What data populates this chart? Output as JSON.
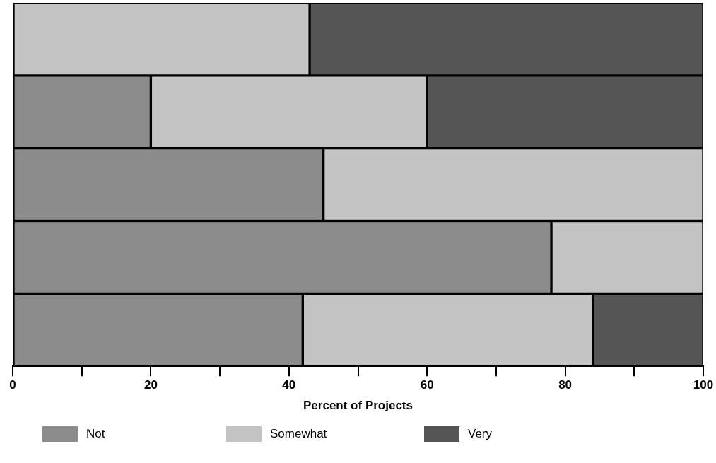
{
  "chart_data": {
    "type": "bar",
    "orientation": "horizontal",
    "stacked": true,
    "xlabel": "Percent of Projects",
    "categories": [
      null,
      null,
      null,
      null,
      null
    ],
    "series": [
      {
        "name": "Not",
        "color": "#8c8c8c",
        "values": [
          0,
          20,
          45,
          78,
          42
        ]
      },
      {
        "name": "Somewhat",
        "color": "#c4c4c4",
        "values": [
          43,
          40,
          55,
          22,
          42
        ]
      },
      {
        "name": "Very",
        "color": "#555555",
        "values": [
          57,
          40,
          0,
          0,
          16
        ]
      }
    ],
    "xlim": [
      0,
      100
    ],
    "xticks": [
      0,
      {
        "value": 10,
        "label": null
      },
      20,
      {
        "value": 30,
        "label": null
      },
      40,
      {
        "value": 50,
        "label": null
      },
      60,
      {
        "value": 70,
        "label": null
      },
      80,
      {
        "value": 90,
        "label": null
      },
      100
    ],
    "grid": false,
    "legend": "bottom"
  }
}
